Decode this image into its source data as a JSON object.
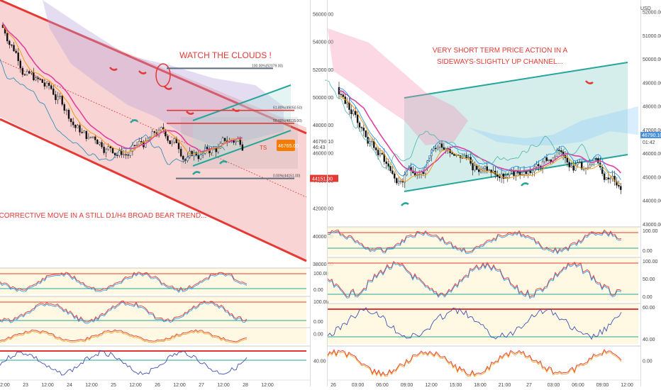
{
  "colors": {
    "bg": "#ffffff",
    "up": "#ffffff",
    "down": "#111111",
    "channel_fill": "#f7c6c6",
    "channel_line": "#e53935",
    "teal": "#26a69a",
    "magenta": "#e040a0",
    "orange": "#f39c12",
    "blue": "#2196f3",
    "red": "#e53935",
    "osc_band": "#fff8dc",
    "fib_line": "#5d6d7e",
    "price_badge": "#f57c00"
  },
  "chart_data": [
    {
      "id": "left",
      "type": "candlestick",
      "title": "",
      "ylim": [
        38000,
        57000
      ],
      "yticks": [
        "56000.00",
        "54000.00",
        "52000.00",
        "50000.00",
        "48000.00",
        "46000.00",
        "44000.00",
        "42000.00",
        "40000.00",
        "38000.00"
      ],
      "xticks": [
        "12:00",
        "23",
        "12:00",
        "24",
        "12:00",
        "25",
        "12:00",
        "26",
        "12:00",
        "27",
        "12:00",
        "28",
        "12:00"
      ],
      "annotations": [
        "WATCH THE CLOUDS !",
        "CORRECTIVE MOVE IN A STILL D1/H4 BROAD BEAR TREND..."
      ],
      "fib_levels": [
        {
          "label": "100.00%(52079.00)",
          "price": 52079
        },
        {
          "label": "61.80%(49050.50)",
          "price": 49050.5
        },
        {
          "label": "50.00%(48115.00)",
          "price": 48115
        },
        {
          "label": "0.00%(44151.00)",
          "price": 44151
        }
      ],
      "last_price": "46790.10",
      "last_price_sub": "46:43",
      "price_badge": "46765.00",
      "level_badge": "44151.00",
      "target_label": "TS",
      "oscillators": [
        {
          "yticks": [
            "100.00",
            "0.00"
          ]
        },
        {
          "yticks": [
            "100.00",
            "0.00"
          ]
        },
        {
          "yticks": [
            "0.00"
          ]
        },
        {
          "yticks": [
            "40.00"
          ]
        }
      ]
    },
    {
      "id": "right",
      "type": "candlestick",
      "title": "",
      "currency": "USD",
      "ylim": [
        43000,
        52500
      ],
      "yticks": [
        "52000.00",
        "51000.00",
        "50000.00",
        "49000.00",
        "48000.00",
        "47000.00",
        "46000.00",
        "45000.00",
        "44000.00",
        "43000.00"
      ],
      "xticks": [
        "26",
        "03:00",
        "06:00",
        "09:00",
        "12:00",
        "15:00",
        "18:00",
        "21:00",
        "27",
        "03:00",
        "06:00",
        "09:00",
        "12:00"
      ],
      "annotations": [
        "VERY SHORT TERM PRICE ACTION IN A",
        "SIDEWAYS-SLIGHTLY UP CHANNEL..."
      ],
      "last_price": "46790.10",
      "last_price_sub": "01:42",
      "oscillators": [
        {
          "yticks": [
            "100.00",
            "0.00"
          ]
        },
        {
          "yticks": [
            "100.00",
            "50.00",
            "0.00"
          ]
        },
        {
          "yticks": [
            "60.00",
            "40.00"
          ]
        },
        {
          "yticks": [
            "0.00"
          ]
        }
      ]
    }
  ]
}
